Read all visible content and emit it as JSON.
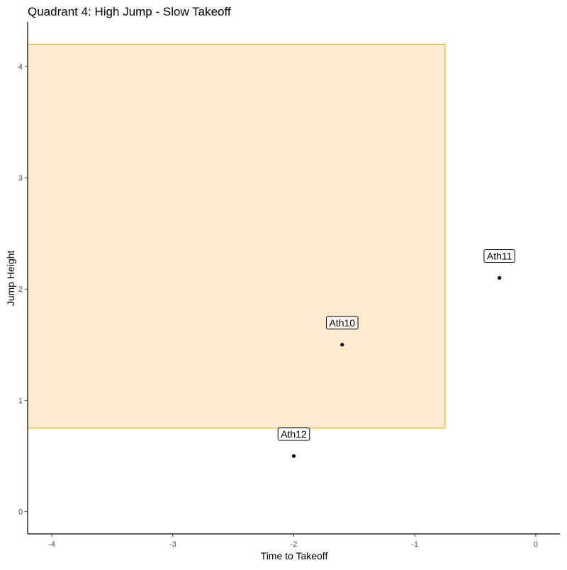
{
  "chart_data": {
    "type": "scatter",
    "title": "Quadrant 4: High Jump - Slow Takeoff",
    "xlabel": "Time to Takeoff",
    "ylabel": "Jump Height",
    "xlim": [
      -4.2,
      0.2
    ],
    "ylim": [
      -0.2,
      4.4
    ],
    "x_ticks": [
      -4,
      -3,
      -2,
      -1,
      0
    ],
    "y_ticks": [
      0,
      1,
      2,
      3,
      4
    ],
    "grid": false,
    "legend": "none",
    "highlight_region": {
      "x": [
        -4.2,
        -0.75
      ],
      "y": [
        0.75,
        4.2
      ],
      "fill": "#FFEBCD",
      "stroke": "#F0A800"
    },
    "points": [
      {
        "label": "Ath10",
        "x": -1.6,
        "y": 1.5
      },
      {
        "label": "Ath11",
        "x": -0.3,
        "y": 2.1
      },
      {
        "label": "Ath12",
        "x": -2.0,
        "y": 0.5
      }
    ],
    "colors": {
      "point": "#000000",
      "axis": "#000000",
      "tick_text": "#4D4D4D"
    }
  }
}
